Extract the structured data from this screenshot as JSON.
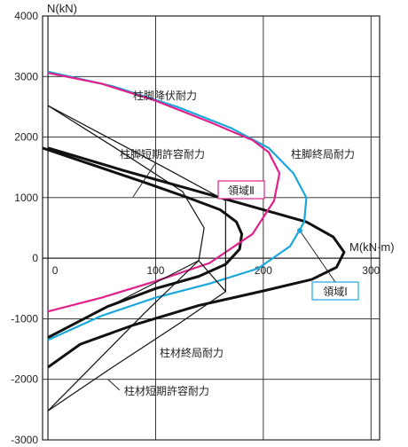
{
  "chart_data": {
    "type": "line",
    "title": "",
    "xlabel": "M(kN·m)",
    "ylabel": "N(kN)",
    "xlim": [
      -5,
      308
    ],
    "ylim": [
      -3000,
      4000
    ],
    "x_ticks": [
      "0",
      "100",
      "200",
      "300"
    ],
    "y_ticks": [
      "4000",
      "3000",
      "2000",
      "1000",
      "0",
      "-1000",
      "-2000",
      "-3000"
    ],
    "grid": true,
    "colors": {
      "black": "#111111",
      "magenta": "#e0218a",
      "cyan": "#1aa7dc"
    },
    "series": [
      {
        "name": "柱脚終局耐力",
        "color": "#111111",
        "width": "thick",
        "points": [
          [
            0,
            1820
          ],
          [
            70,
            1450
          ],
          [
            130,
            1150
          ],
          [
            190,
            850
          ],
          [
            240,
            600
          ],
          [
            265,
            350
          ],
          [
            275,
            100
          ],
          [
            268,
            -150
          ],
          [
            245,
            -350
          ],
          [
            200,
            -540
          ],
          [
            140,
            -780
          ],
          [
            80,
            -1100
          ],
          [
            30,
            -1420
          ],
          [
            0,
            -1800
          ]
        ]
      },
      {
        "name": "柱脚降伏耐力",
        "color": "#1aa7dc",
        "points": [
          [
            0,
            3080
          ],
          [
            60,
            2840
          ],
          [
            120,
            2500
          ],
          [
            170,
            2150
          ],
          [
            205,
            1820
          ],
          [
            228,
            1400
          ],
          [
            240,
            1000
          ],
          [
            238,
            600
          ],
          [
            225,
            200
          ],
          [
            195,
            -170
          ],
          [
            150,
            -420
          ],
          [
            100,
            -650
          ],
          [
            50,
            -950
          ],
          [
            0,
            -1350
          ]
        ]
      },
      {
        "name": "柱脚終局耐力(inner)",
        "color": "#111111",
        "width": "thick",
        "points": [
          [
            -5,
            1820
          ],
          [
            40,
            1550
          ],
          [
            90,
            1250
          ],
          [
            130,
            1000
          ],
          [
            160,
            800
          ],
          [
            175,
            600
          ],
          [
            180,
            400
          ],
          [
            178,
            150
          ],
          [
            165,
            -100
          ],
          [
            140,
            -300
          ],
          [
            100,
            -500
          ],
          [
            55,
            -800
          ],
          [
            0,
            -1310
          ]
        ]
      },
      {
        "name": "柱脚短期許容耐力(curve)",
        "color": "#e0218a",
        "points": [
          [
            0,
            -880
          ],
          [
            50,
            -650
          ],
          [
            100,
            -380
          ],
          [
            150,
            -80
          ],
          [
            190,
            400
          ],
          [
            210,
            950
          ],
          [
            215,
            1400
          ],
          [
            205,
            1750
          ],
          [
            190,
            1950
          ],
          [
            150,
            2250
          ],
          [
            100,
            2600
          ],
          [
            50,
            2880
          ],
          [
            0,
            3060
          ]
        ]
      },
      {
        "name": "柱脚短期許容耐力",
        "color": "#111111",
        "points": [
          [
            0,
            2520
          ],
          [
            55,
            2000
          ],
          [
            110,
            1480
          ],
          [
            165,
            950
          ],
          [
            165,
            600
          ],
          [
            165,
            -550
          ],
          [
            140,
            -40
          ],
          [
            0,
            -1310
          ]
        ]
      },
      {
        "name": "柱材短期許容耐力",
        "color": "#111111",
        "points": [
          [
            0,
            2520
          ],
          [
            60,
            1850
          ],
          [
            125,
            1100
          ],
          [
            145,
            500
          ],
          [
            140,
            -40
          ],
          [
            90,
            -900
          ],
          [
            40,
            -1800
          ],
          [
            0,
            -2520
          ]
        ]
      },
      {
        "name": "柱材終局耐力",
        "color": "#111111",
        "points": [
          [
            0,
            -2520
          ],
          [
            60,
            -1800
          ],
          [
            120,
            -1100
          ],
          [
            165,
            -550
          ]
        ]
      }
    ]
  },
  "annotations": {
    "yield": "柱脚降伏耐力",
    "short_allow": "柱脚短期許容耐力",
    "ultimate": "柱脚終局耐力",
    "region2": "領域Ⅱ",
    "region1": "領域Ⅰ",
    "member_ult": "柱材終局耐力",
    "member_short": "柱材短期許容耐力"
  }
}
